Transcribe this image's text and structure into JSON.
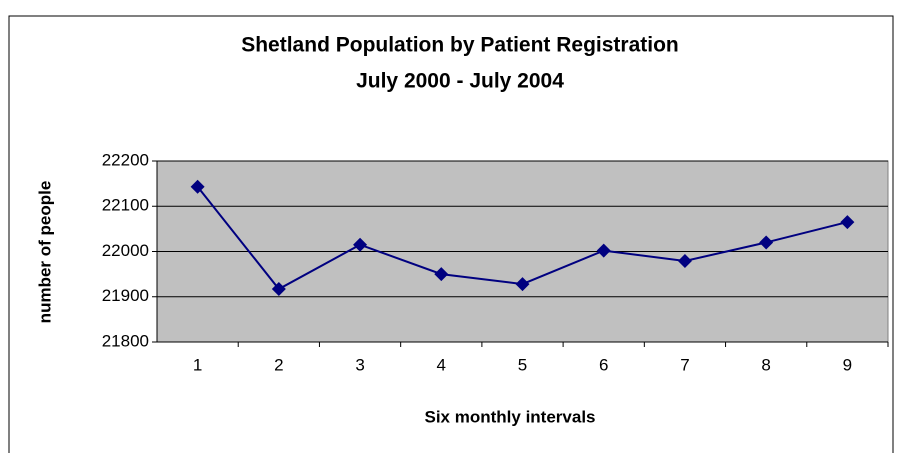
{
  "chart_data": {
    "type": "line",
    "title": [
      "Shetland Population by Patient Registration",
      "July 2000 - July 2004"
    ],
    "x_label": "Six monthly intervals",
    "y_label": "number of people",
    "categories": [
      "1",
      "2",
      "3",
      "4",
      "5",
      "6",
      "7",
      "8",
      "9"
    ],
    "series": [
      {
        "color": "#000080",
        "values": [
          22143,
          21917,
          22015,
          21950,
          21928,
          22002,
          21979,
          22020,
          22065
        ]
      }
    ],
    "ylim": [
      21800,
      22200
    ],
    "yticks": [
      21800,
      21900,
      22000,
      22100,
      22200
    ],
    "grid": true
  }
}
